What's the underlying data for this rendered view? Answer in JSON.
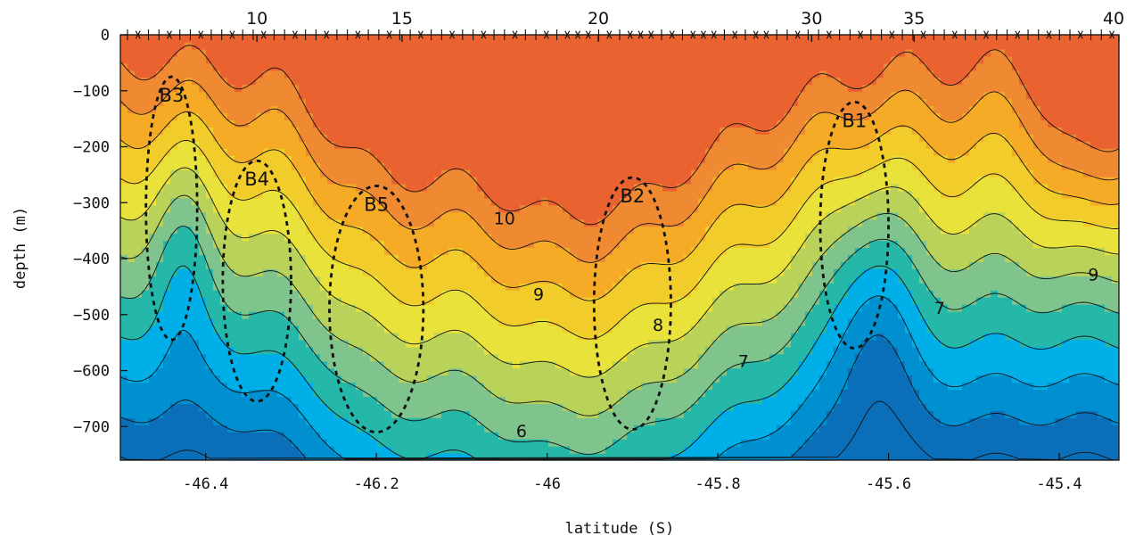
{
  "chart_data": {
    "type": "contour",
    "xlabel": "latitude (S)",
    "ylabel": "depth (m)",
    "xlim": [
      -46.5,
      -45.33
    ],
    "ylim": [
      -760,
      0
    ],
    "x_ticks": [
      -46.4,
      -46.2,
      -46,
      -45.8,
      -45.6,
      -45.4
    ],
    "x_tick_labels": [
      "-46.4",
      "-46.2",
      "-46",
      "-45.8",
      "-45.6",
      "-45.4"
    ],
    "y_ticks": [
      0,
      -100,
      -200,
      -300,
      -400,
      -500,
      -600,
      -700
    ],
    "y_tick_labels": [
      "0",
      "−100",
      "−200",
      "−300",
      "−400",
      "−500",
      "−600",
      "−700"
    ],
    "station_ticks": [
      {
        "label": "10",
        "lat": -46.34
      },
      {
        "label": "15",
        "lat": -46.17
      },
      {
        "label": "20",
        "lat": -45.94
      },
      {
        "label": "30",
        "lat": -45.69
      },
      {
        "label": "35",
        "lat": -45.57
      },
      {
        "label": "40",
        "lat": -45.33
      }
    ],
    "contour_labels": [
      {
        "text": "10",
        "lat": -46.05,
        "depth": -330
      },
      {
        "text": "9",
        "lat": -46.01,
        "depth": -465
      },
      {
        "text": "8",
        "lat": -45.87,
        "depth": -520
      },
      {
        "text": "7",
        "lat": -45.77,
        "depth": -585
      },
      {
        "text": "7",
        "lat": -45.54,
        "depth": -490
      },
      {
        "text": "9",
        "lat": -45.36,
        "depth": -430
      },
      {
        "text": "6",
        "lat": -46.03,
        "depth": -710
      }
    ],
    "regions": [
      {
        "label": "B3",
        "lat_center": -46.44,
        "depth_center": -310,
        "lat_halfwidth": 0.03,
        "depth_halfheight": 235
      },
      {
        "label": "B4",
        "lat_center": -46.34,
        "depth_center": -440,
        "lat_halfwidth": 0.04,
        "depth_halfheight": 215
      },
      {
        "label": "B5",
        "lat_center": -46.2,
        "depth_center": -490,
        "lat_halfwidth": 0.055,
        "depth_halfheight": 220
      },
      {
        "label": "B2",
        "lat_center": -45.9,
        "depth_center": -480,
        "lat_halfwidth": 0.045,
        "depth_halfheight": 225
      },
      {
        "label": "B1",
        "lat_center": -45.64,
        "depth_center": -340,
        "lat_halfwidth": 0.04,
        "depth_halfheight": 220
      }
    ],
    "color_levels": [
      {
        "level": 5.0,
        "color": "#0a6fb8"
      },
      {
        "level": 5.5,
        "color": "#0090d0"
      },
      {
        "level": 6.0,
        "color": "#00aee8"
      },
      {
        "level": 6.5,
        "color": "#25b8a8"
      },
      {
        "level": 7.0,
        "color": "#7fc48c"
      },
      {
        "level": 7.5,
        "color": "#b9d35a"
      },
      {
        "level": 8.0,
        "color": "#e8e23a"
      },
      {
        "level": 8.5,
        "color": "#f2cc2a"
      },
      {
        "level": 9.0,
        "color": "#f5ab26"
      },
      {
        "level": 9.5,
        "color": "#ef8a33"
      },
      {
        "level": 10.0,
        "color": "#ea6230"
      }
    ],
    "grid": false
  }
}
